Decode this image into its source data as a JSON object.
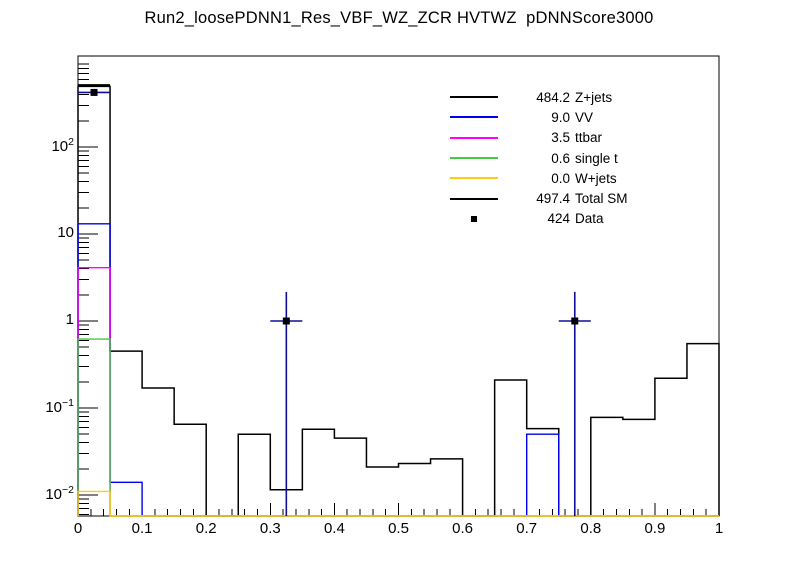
{
  "title": "Run2_loosePDNN1_Res_VBF_WZ_ZCR HVTWZ  pDNNScore3000",
  "colors": {
    "frame": "#000000",
    "zjets": "#000000",
    "vv": "#0000f0",
    "ttbar": "#ff00ff",
    "singlet": "#44c944",
    "wjets": "#ffcc11",
    "total_sm": "#000000",
    "data_error_bar": "#0f0f99",
    "data_marker": "#000000"
  },
  "legend": {
    "entries": [
      {
        "value": "484.2",
        "label": "Z+jets",
        "color": "#000000",
        "swatch": "line"
      },
      {
        "value": "9.0",
        "label": "VV",
        "color": "#0000f0",
        "swatch": "line"
      },
      {
        "value": "3.5",
        "label": "ttbar",
        "color": "#ff00ff",
        "swatch": "line"
      },
      {
        "value": "0.6",
        "label": "single t",
        "color": "#44c944",
        "swatch": "line"
      },
      {
        "value": "0.0",
        "label": "W+jets",
        "color": "#ffcc11",
        "swatch": "line"
      },
      {
        "value": "497.4",
        "label": "Total SM",
        "color": "#000000",
        "swatch": "line"
      },
      {
        "value": "424",
        "label": "Data",
        "color": "#000000",
        "swatch": "marker"
      }
    ]
  },
  "chart_data": {
    "type": "histogram",
    "style": "ROOT stacked step outlines, overlaid data points, log y-axis",
    "xlim": [
      0,
      1
    ],
    "ylim": [
      0.0057,
      950
    ],
    "log_y": true,
    "bin_width": 0.05,
    "bin_edges": [
      0,
      0.05,
      0.1,
      0.15,
      0.2,
      0.25,
      0.3,
      0.35,
      0.4,
      0.45,
      0.5,
      0.55,
      0.6,
      0.65,
      0.7,
      0.75,
      0.8,
      0.85,
      0.9,
      0.95,
      1.0
    ],
    "series": [
      {
        "name": "Z+jets (stack top / Total SM outline)",
        "color": "#000000",
        "width": 1.5,
        "values": [
          497.1,
          0.45,
          0.17,
          0.065,
          0,
          0.05,
          0.0115,
          0.057,
          0.045,
          0.021,
          0.023,
          0.026,
          0,
          0.21,
          0.058,
          0,
          0.078,
          0.074,
          0.22,
          0.55
        ]
      },
      {
        "name": "VV (stack top)",
        "color": "#0000f0",
        "width": 1.4,
        "values": [
          13.1,
          0.014,
          0,
          0,
          0,
          0,
          0,
          0,
          0,
          0,
          0,
          0,
          0,
          0,
          0.05,
          0,
          0,
          0,
          0,
          0
        ]
      },
      {
        "name": "ttbar (stack top)",
        "color": "#ff00ff",
        "width": 1.4,
        "values": [
          4.1,
          0,
          0,
          0,
          0,
          0,
          0,
          0,
          0,
          0,
          0,
          0,
          0,
          0,
          0,
          0,
          0,
          0,
          0,
          0
        ]
      },
      {
        "name": "single t (stack top)",
        "color": "#44c944",
        "width": 1.4,
        "values": [
          0.62,
          0,
          0,
          0,
          0,
          0,
          0,
          0,
          0,
          0,
          0,
          0,
          0,
          0,
          0,
          0,
          0,
          0,
          0,
          0
        ]
      },
      {
        "name": "W+jets (stack top)",
        "color": "#ffcc11",
        "width": 1.4,
        "values": [
          0.011,
          0,
          0,
          0,
          0,
          0,
          0,
          0,
          0,
          0,
          0,
          0,
          0,
          0,
          0,
          0,
          0,
          0,
          0,
          0
        ]
      }
    ],
    "total_sm": {
      "bin1_value": 497.4,
      "bin1_range": [
        0,
        0.05
      ],
      "color": "#000000",
      "width": 2.8
    },
    "data_points": [
      {
        "x": 0.025,
        "y": 424,
        "err_hi": 445,
        "err_lo": 403,
        "x_lo": 0.0,
        "x_hi": 0.05
      },
      {
        "x": 0.325,
        "y": 1,
        "err_hi": 2.16,
        "err_lo": 1e-06,
        "x_lo": 0.3,
        "x_hi": 0.35
      },
      {
        "x": 0.775,
        "y": 1,
        "err_hi": 2.16,
        "err_lo": 1e-06,
        "x_lo": 0.75,
        "x_hi": 0.8
      }
    ],
    "x_axis": {
      "tick_labels": [
        "0",
        "0.1",
        "0.2",
        "0.3",
        "0.4",
        "0.5",
        "0.6",
        "0.7",
        "0.8",
        "0.9",
        "1"
      ],
      "tick_values": [
        0,
        0.1,
        0.2,
        0.3,
        0.4,
        0.5,
        0.6,
        0.7,
        0.8,
        0.9,
        1
      ],
      "minor_step": 0.02
    },
    "y_axis": {
      "scale": "log",
      "decade_labels": [
        {
          "mantissa": "10",
          "exp": "2",
          "value": 100
        },
        {
          "mantissa": "10",
          "exp": "",
          "value": 10
        },
        {
          "mantissa": "1",
          "exp": "",
          "value": 1
        },
        {
          "mantissa": "10",
          "exp": "−1",
          "value": 0.1
        },
        {
          "mantissa": "10",
          "exp": "−2",
          "value": 0.01
        }
      ]
    }
  }
}
